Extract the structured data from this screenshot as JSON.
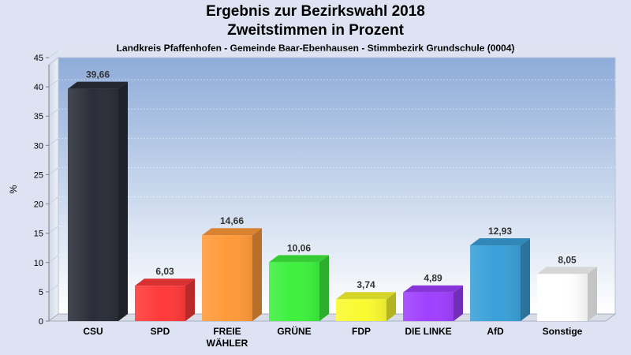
{
  "chart_data": {
    "type": "bar",
    "title": "Ergebnis zur Bezirkswahl 2018",
    "subtitle": "Zweitstimmen in Prozent",
    "caption": "Landkreis Pfaffenhofen - Gemeinde Baar-Ebenhausen - Stimmbezirk Grundschule (0004)",
    "ylabel": "%",
    "xlabel": "",
    "ylim": [
      0,
      45
    ],
    "yticks": [
      0,
      5,
      10,
      15,
      20,
      25,
      30,
      35,
      40,
      45
    ],
    "grid": true,
    "categories": [
      {
        "lines": [
          "CSU"
        ]
      },
      {
        "lines": [
          "SPD"
        ]
      },
      {
        "lines": [
          "FREIE",
          "WÄHLER"
        ]
      },
      {
        "lines": [
          "GRÜNE"
        ]
      },
      {
        "lines": [
          "FDP"
        ]
      },
      {
        "lines": [
          "DIE LINKE"
        ]
      },
      {
        "lines": [
          "AfD"
        ]
      },
      {
        "lines": [
          "Sonstige"
        ]
      }
    ],
    "values": [
      39.66,
      6.03,
      14.66,
      10.06,
      3.74,
      4.89,
      12.93,
      8.05
    ],
    "value_labels": [
      "39,66",
      "6,03",
      "14,66",
      "10,06",
      "3,74",
      "4,89",
      "12,93",
      "8,05"
    ],
    "colors": [
      "#2b2e38",
      "#ff3a3a",
      "#ff9a3a",
      "#3ef03e",
      "#fafa30",
      "#a040ff",
      "#3aa0d8",
      "#ffffff"
    ]
  }
}
